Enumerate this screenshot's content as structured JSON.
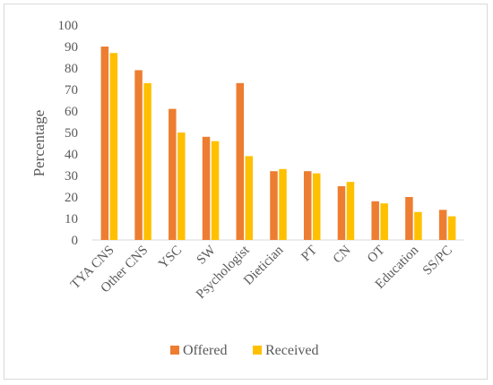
{
  "chart_data": {
    "type": "bar",
    "title": "",
    "xlabel": "",
    "ylabel": "Percentage",
    "ylim": [
      0,
      100
    ],
    "yticks": [
      0,
      10,
      20,
      30,
      40,
      50,
      60,
      70,
      80,
      90,
      100
    ],
    "grid": false,
    "legend_position": "bottom",
    "categories": [
      "TYA CNS",
      "Other CNS",
      "YSC",
      "SW",
      "Psychologist",
      "Dietician",
      "PT",
      "CN",
      "OT",
      "Education",
      "SS/PC"
    ],
    "series": [
      {
        "name": "Offered",
        "color": "#ED7D31",
        "values": [
          90,
          79,
          61,
          48,
          73,
          32,
          32,
          25,
          18,
          20,
          14
        ]
      },
      {
        "name": "Received",
        "color": "#FFC000",
        "values": [
          87,
          73,
          50,
          46,
          39,
          33,
          31,
          27,
          17,
          13,
          11
        ]
      }
    ]
  }
}
